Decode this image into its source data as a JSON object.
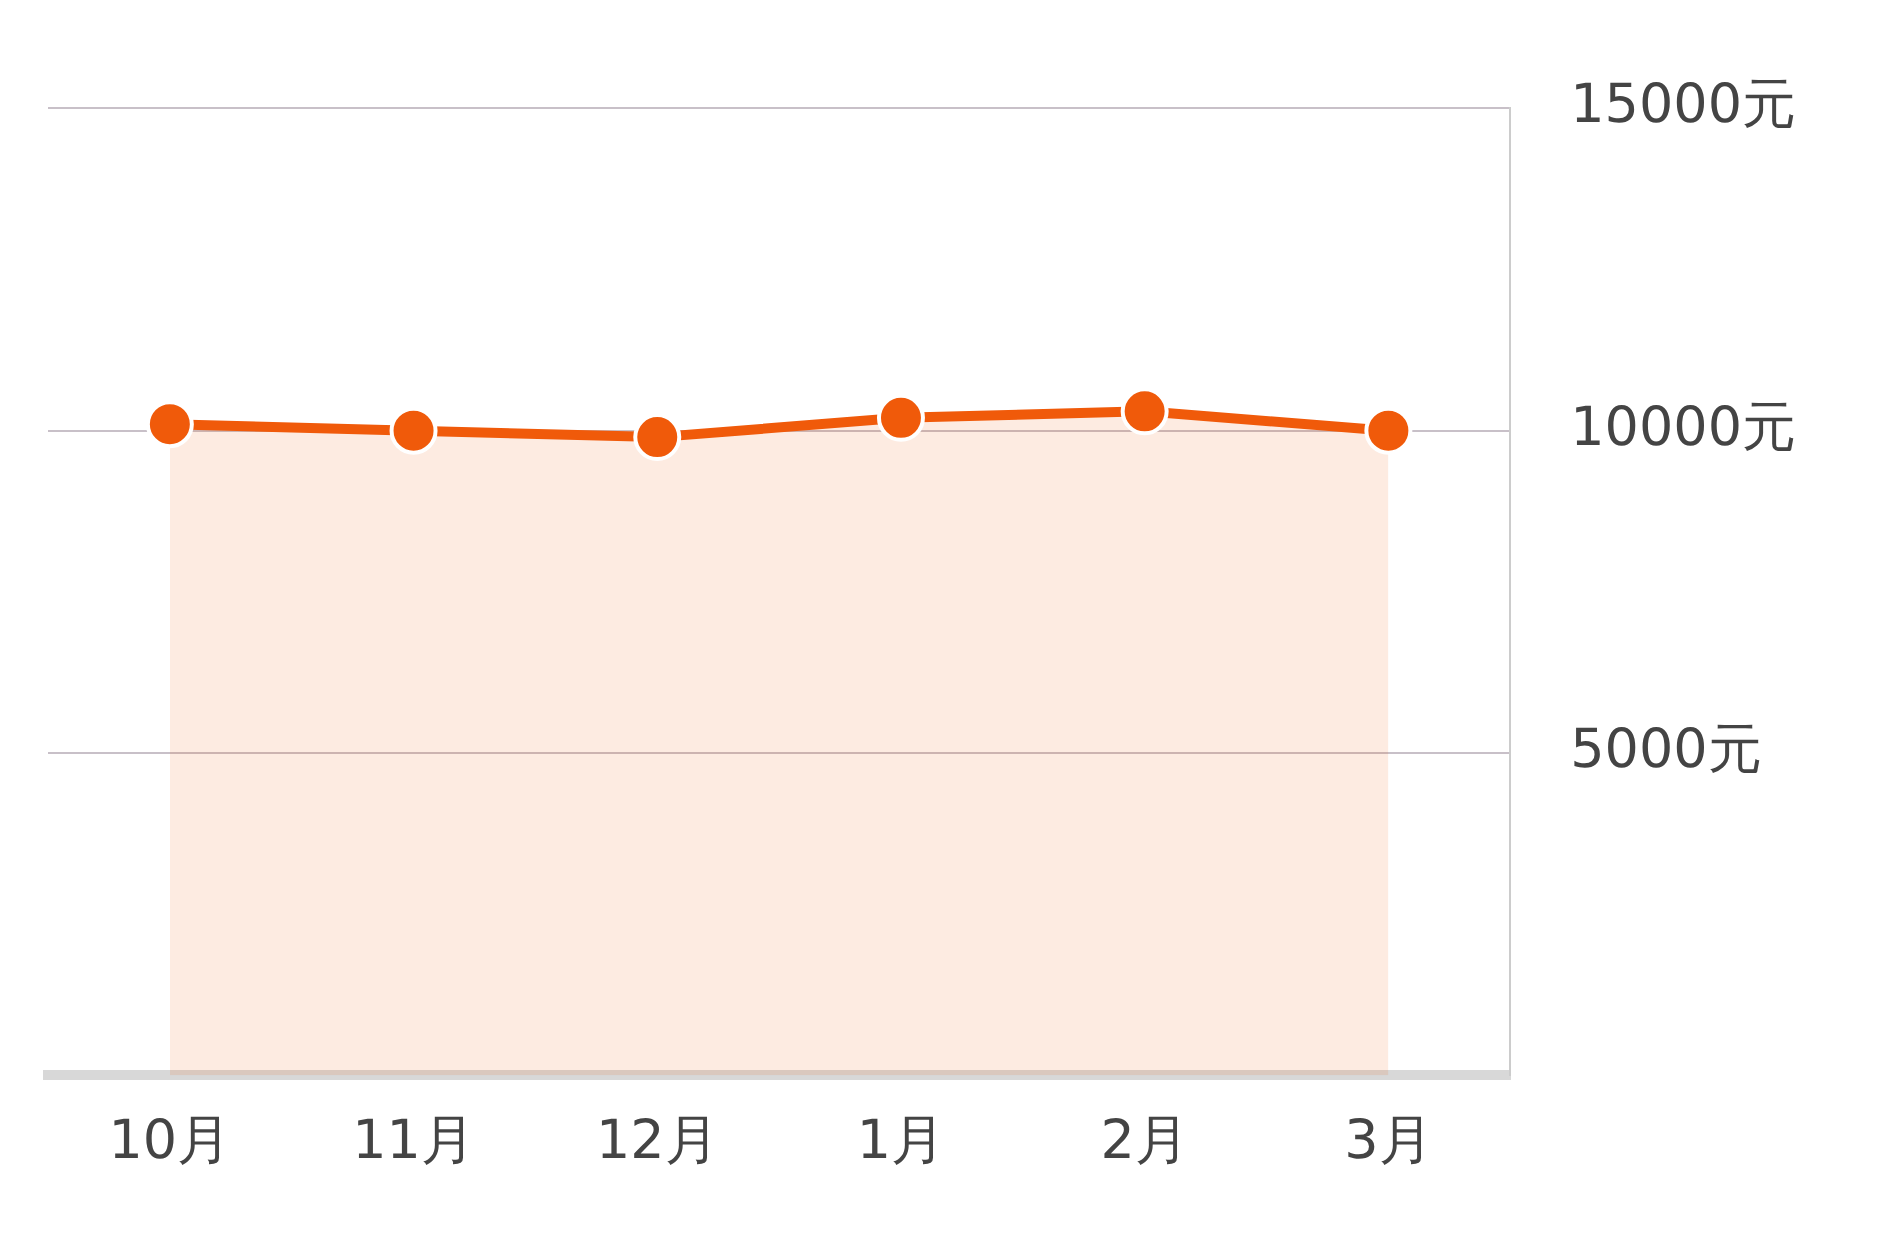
{
  "chart_data": {
    "type": "area",
    "categories": [
      "10月",
      "11月",
      "12月",
      "1月",
      "2月",
      "3月"
    ],
    "series": [
      {
        "color": "#f05a0a",
        "values": [
          10100,
          10000,
          9900,
          10200,
          10300,
          10000
        ]
      }
    ],
    "ylim": [
      0,
      15000
    ],
    "yticks": [
      {
        "value": 5000,
        "label": "5000元"
      },
      {
        "value": 10000,
        "label": "10000元"
      },
      {
        "value": 15000,
        "label": "15000元"
      }
    ],
    "grid": "y",
    "legend": false,
    "marker": "circle",
    "line_style": "solid"
  }
}
